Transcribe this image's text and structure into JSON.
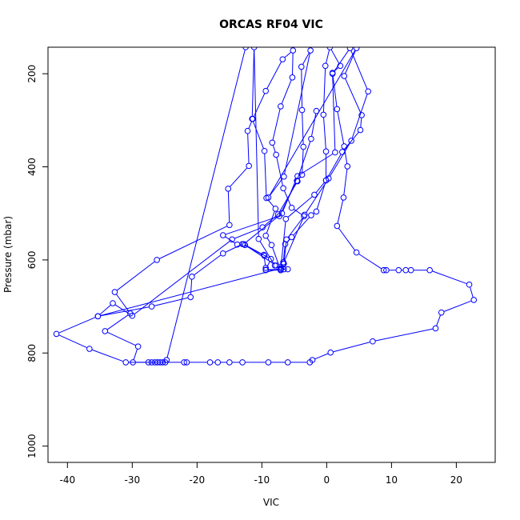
{
  "chart_data": {
    "type": "line",
    "title": "ORCAS RF04 VIC",
    "xlabel": "VIC",
    "ylabel": "Pressure (mbar)",
    "xlim": [
      -43,
      26
    ],
    "ylim": [
      1035,
      143
    ],
    "y_reversed": true,
    "x_ticks": [
      -40,
      -30,
      -20,
      -10,
      0,
      10,
      20
    ],
    "x_tick_labels": [
      "-40",
      "-30",
      "-20",
      "-10",
      "0",
      "10",
      "20"
    ],
    "y_ticks": [
      200,
      400,
      600,
      800,
      1000
    ],
    "y_tick_labels": [
      "200",
      "400",
      "600",
      "800",
      "1000"
    ],
    "grid": false,
    "legend": false,
    "series": [
      {
        "color": "#0000ff",
        "marker": "open-circle",
        "points": [
          [
            -12.5,
            143
          ],
          [
            -24.7,
            815
          ],
          [
            -24.9,
            820
          ],
          [
            -25.3,
            820
          ],
          [
            -25.7,
            820
          ],
          [
            -26.1,
            820
          ],
          [
            -26.5,
            820
          ],
          [
            -27.0,
            820
          ],
          [
            -27.5,
            820
          ],
          [
            -29.9,
            820
          ],
          [
            -29.1,
            786
          ],
          [
            -34.2,
            753
          ],
          [
            -30.3,
            715
          ],
          [
            -32.7,
            669
          ],
          [
            -26.2,
            600
          ],
          [
            -15.0,
            525
          ],
          [
            -15.2,
            447
          ],
          [
            -12.0,
            398
          ],
          [
            -12.2,
            323
          ],
          [
            -11.4,
            297
          ],
          [
            -9.4,
            237
          ],
          [
            -6.8,
            169
          ],
          [
            -5.2,
            150
          ],
          [
            -5.3,
            208
          ],
          [
            -7.1,
            270
          ],
          [
            -8.4,
            348
          ],
          [
            -7.8,
            374
          ],
          [
            -6.7,
            446
          ],
          [
            -5.4,
            488
          ],
          [
            -3.5,
            506
          ],
          [
            -6.2,
            556
          ],
          [
            -6.6,
            608
          ],
          [
            -7.1,
            622
          ],
          [
            -8.5,
            568
          ],
          [
            -9.4,
            548
          ],
          [
            -7.9,
            490
          ],
          [
            -9.3,
            467
          ],
          [
            -9.6,
            366
          ],
          [
            -11.5,
            297
          ],
          [
            -11.2,
            143
          ],
          [
            -10.5,
            555
          ],
          [
            -8.0,
            612
          ],
          [
            -7.0,
            618
          ],
          [
            -35.3,
            721
          ],
          [
            -41.7,
            759
          ],
          [
            -36.6,
            791
          ],
          [
            -31.0,
            820
          ],
          [
            -22.0,
            820
          ],
          [
            -21.6,
            820
          ],
          [
            -18.0,
            820
          ],
          [
            -16.8,
            820
          ],
          [
            -15.0,
            820
          ],
          [
            -13.0,
            820
          ],
          [
            -9.0,
            820
          ],
          [
            -6.0,
            820
          ],
          [
            -2.6,
            820
          ],
          [
            -2.2,
            815
          ],
          [
            0.6,
            799
          ],
          [
            7.1,
            775
          ],
          [
            16.8,
            747
          ],
          [
            17.7,
            713
          ],
          [
            22.7,
            686
          ],
          [
            22.0,
            653
          ],
          [
            15.9,
            622
          ],
          [
            13.0,
            622
          ],
          [
            12.2,
            622
          ],
          [
            11.1,
            622
          ],
          [
            9.2,
            622
          ],
          [
            8.8,
            622
          ],
          [
            4.6,
            584
          ],
          [
            1.6,
            527
          ],
          [
            2.6,
            466
          ],
          [
            3.2,
            399
          ],
          [
            2.7,
            356
          ],
          [
            1.6,
            276
          ],
          [
            0.9,
            198
          ],
          [
            2.1,
            183
          ],
          [
            0.5,
            143
          ],
          [
            -0.2,
            183
          ],
          [
            -0.5,
            288
          ],
          [
            -0.1,
            367
          ],
          [
            -0.1,
            429
          ],
          [
            -1.6,
            496
          ],
          [
            -2.4,
            504
          ],
          [
            -5.4,
            551
          ],
          [
            -6.4,
            566
          ],
          [
            -6.7,
            605
          ],
          [
            -7.1,
            622
          ],
          [
            -9.4,
            622
          ],
          [
            -9.4,
            617
          ],
          [
            -9.7,
            589
          ],
          [
            -9.6,
            591
          ],
          [
            -13.0,
            566
          ],
          [
            -16.0,
            586
          ],
          [
            -20.8,
            636
          ],
          [
            -21.0,
            680
          ],
          [
            -27.0,
            700
          ],
          [
            -35.3,
            721
          ],
          [
            -33.0,
            693
          ],
          [
            -30.0,
            720
          ],
          [
            -14.6,
            556
          ],
          [
            -9.9,
            530
          ],
          [
            -7.5,
            502
          ],
          [
            -4.5,
            431
          ],
          [
            -3.8,
            417
          ],
          [
            -3.6,
            357
          ],
          [
            -3.8,
            278
          ],
          [
            -3.9,
            185
          ],
          [
            -2.5,
            150
          ],
          [
            -6.6,
            421
          ],
          [
            -9.0,
            466
          ],
          [
            4.6,
            145
          ],
          [
            2.7,
            205
          ],
          [
            5.4,
            289
          ],
          [
            5.2,
            321
          ],
          [
            2.4,
            368
          ],
          [
            -0.1,
            429
          ],
          [
            -1.9,
            460
          ],
          [
            -6.3,
            512
          ],
          [
            -7.1,
            620
          ],
          [
            -6.6,
            620
          ],
          [
            -6.0,
            620
          ],
          [
            -9.4,
            621
          ],
          [
            -8.6,
            598
          ],
          [
            -12.8,
            566
          ],
          [
            -6.9,
            500
          ],
          [
            -4.5,
            420
          ],
          [
            1.3,
            369
          ],
          [
            0.9,
            200
          ],
          [
            3.6,
            145
          ],
          [
            6.4,
            238
          ],
          [
            3.8,
            344
          ],
          [
            0.3,
            425
          ],
          [
            -3.4,
            503
          ],
          [
            -6.7,
            608
          ],
          [
            -7.8,
            612
          ],
          [
            -12.6,
            568
          ],
          [
            -13.8,
            567
          ],
          [
            -16.0,
            547
          ],
          [
            -7.3,
            506
          ],
          [
            -4.6,
            430
          ],
          [
            -2.4,
            340
          ],
          [
            -1.6,
            280
          ]
        ]
      }
    ]
  }
}
